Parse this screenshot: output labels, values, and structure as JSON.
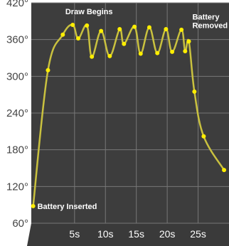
{
  "chart_data": {
    "type": "line",
    "title": "",
    "xlabel": "",
    "ylabel": "",
    "y_unit": "°",
    "x_unit": "s",
    "xlim": [
      -2,
      30
    ],
    "ylim": [
      60,
      420
    ],
    "yticks": [
      60,
      120,
      180,
      240,
      300,
      360,
      420
    ],
    "xticks": [
      5,
      10,
      15,
      20,
      25
    ],
    "ytick_labels": [
      "60°",
      "120°",
      "180°",
      "240°",
      "300°",
      "360°",
      "420°"
    ],
    "xtick_labels": [
      "5s",
      "10s",
      "15s",
      "20s",
      "25s"
    ],
    "grid": true,
    "line_color": "#c9c13f",
    "marker_color": "#ffee00",
    "background_color": "#3d3d3d",
    "grid_color": "#777777",
    "series": [
      {
        "points": [
          [
            -1.7,
            88
          ],
          [
            0.7,
            310
          ],
          [
            3.1,
            368
          ],
          [
            4.7,
            384
          ],
          [
            5.6,
            362
          ],
          [
            7.0,
            383
          ],
          [
            7.8,
            332
          ],
          [
            9.3,
            374
          ],
          [
            10.7,
            333
          ],
          [
            12.3,
            377
          ],
          [
            13.0,
            353
          ],
          [
            14.7,
            381
          ],
          [
            15.7,
            337
          ],
          [
            17.1,
            380
          ],
          [
            18.4,
            338
          ],
          [
            19.8,
            377
          ],
          [
            20.8,
            340
          ],
          [
            22.3,
            376
          ],
          [
            22.9,
            341
          ],
          [
            23.5,
            357
          ],
          [
            24.4,
            275
          ],
          [
            25.9,
            202
          ],
          [
            29.2,
            147
          ]
        ]
      }
    ],
    "annotations": [
      {
        "label": "Battery Inserted",
        "x": -1.7,
        "y": 88,
        "anchor": "right"
      },
      {
        "label": "Draw Begins",
        "x": 7.0,
        "y": 383,
        "anchor": "above"
      },
      {
        "label": "Battery Removed",
        "x": 23.5,
        "y": 357,
        "anchor": "above-right"
      }
    ]
  }
}
